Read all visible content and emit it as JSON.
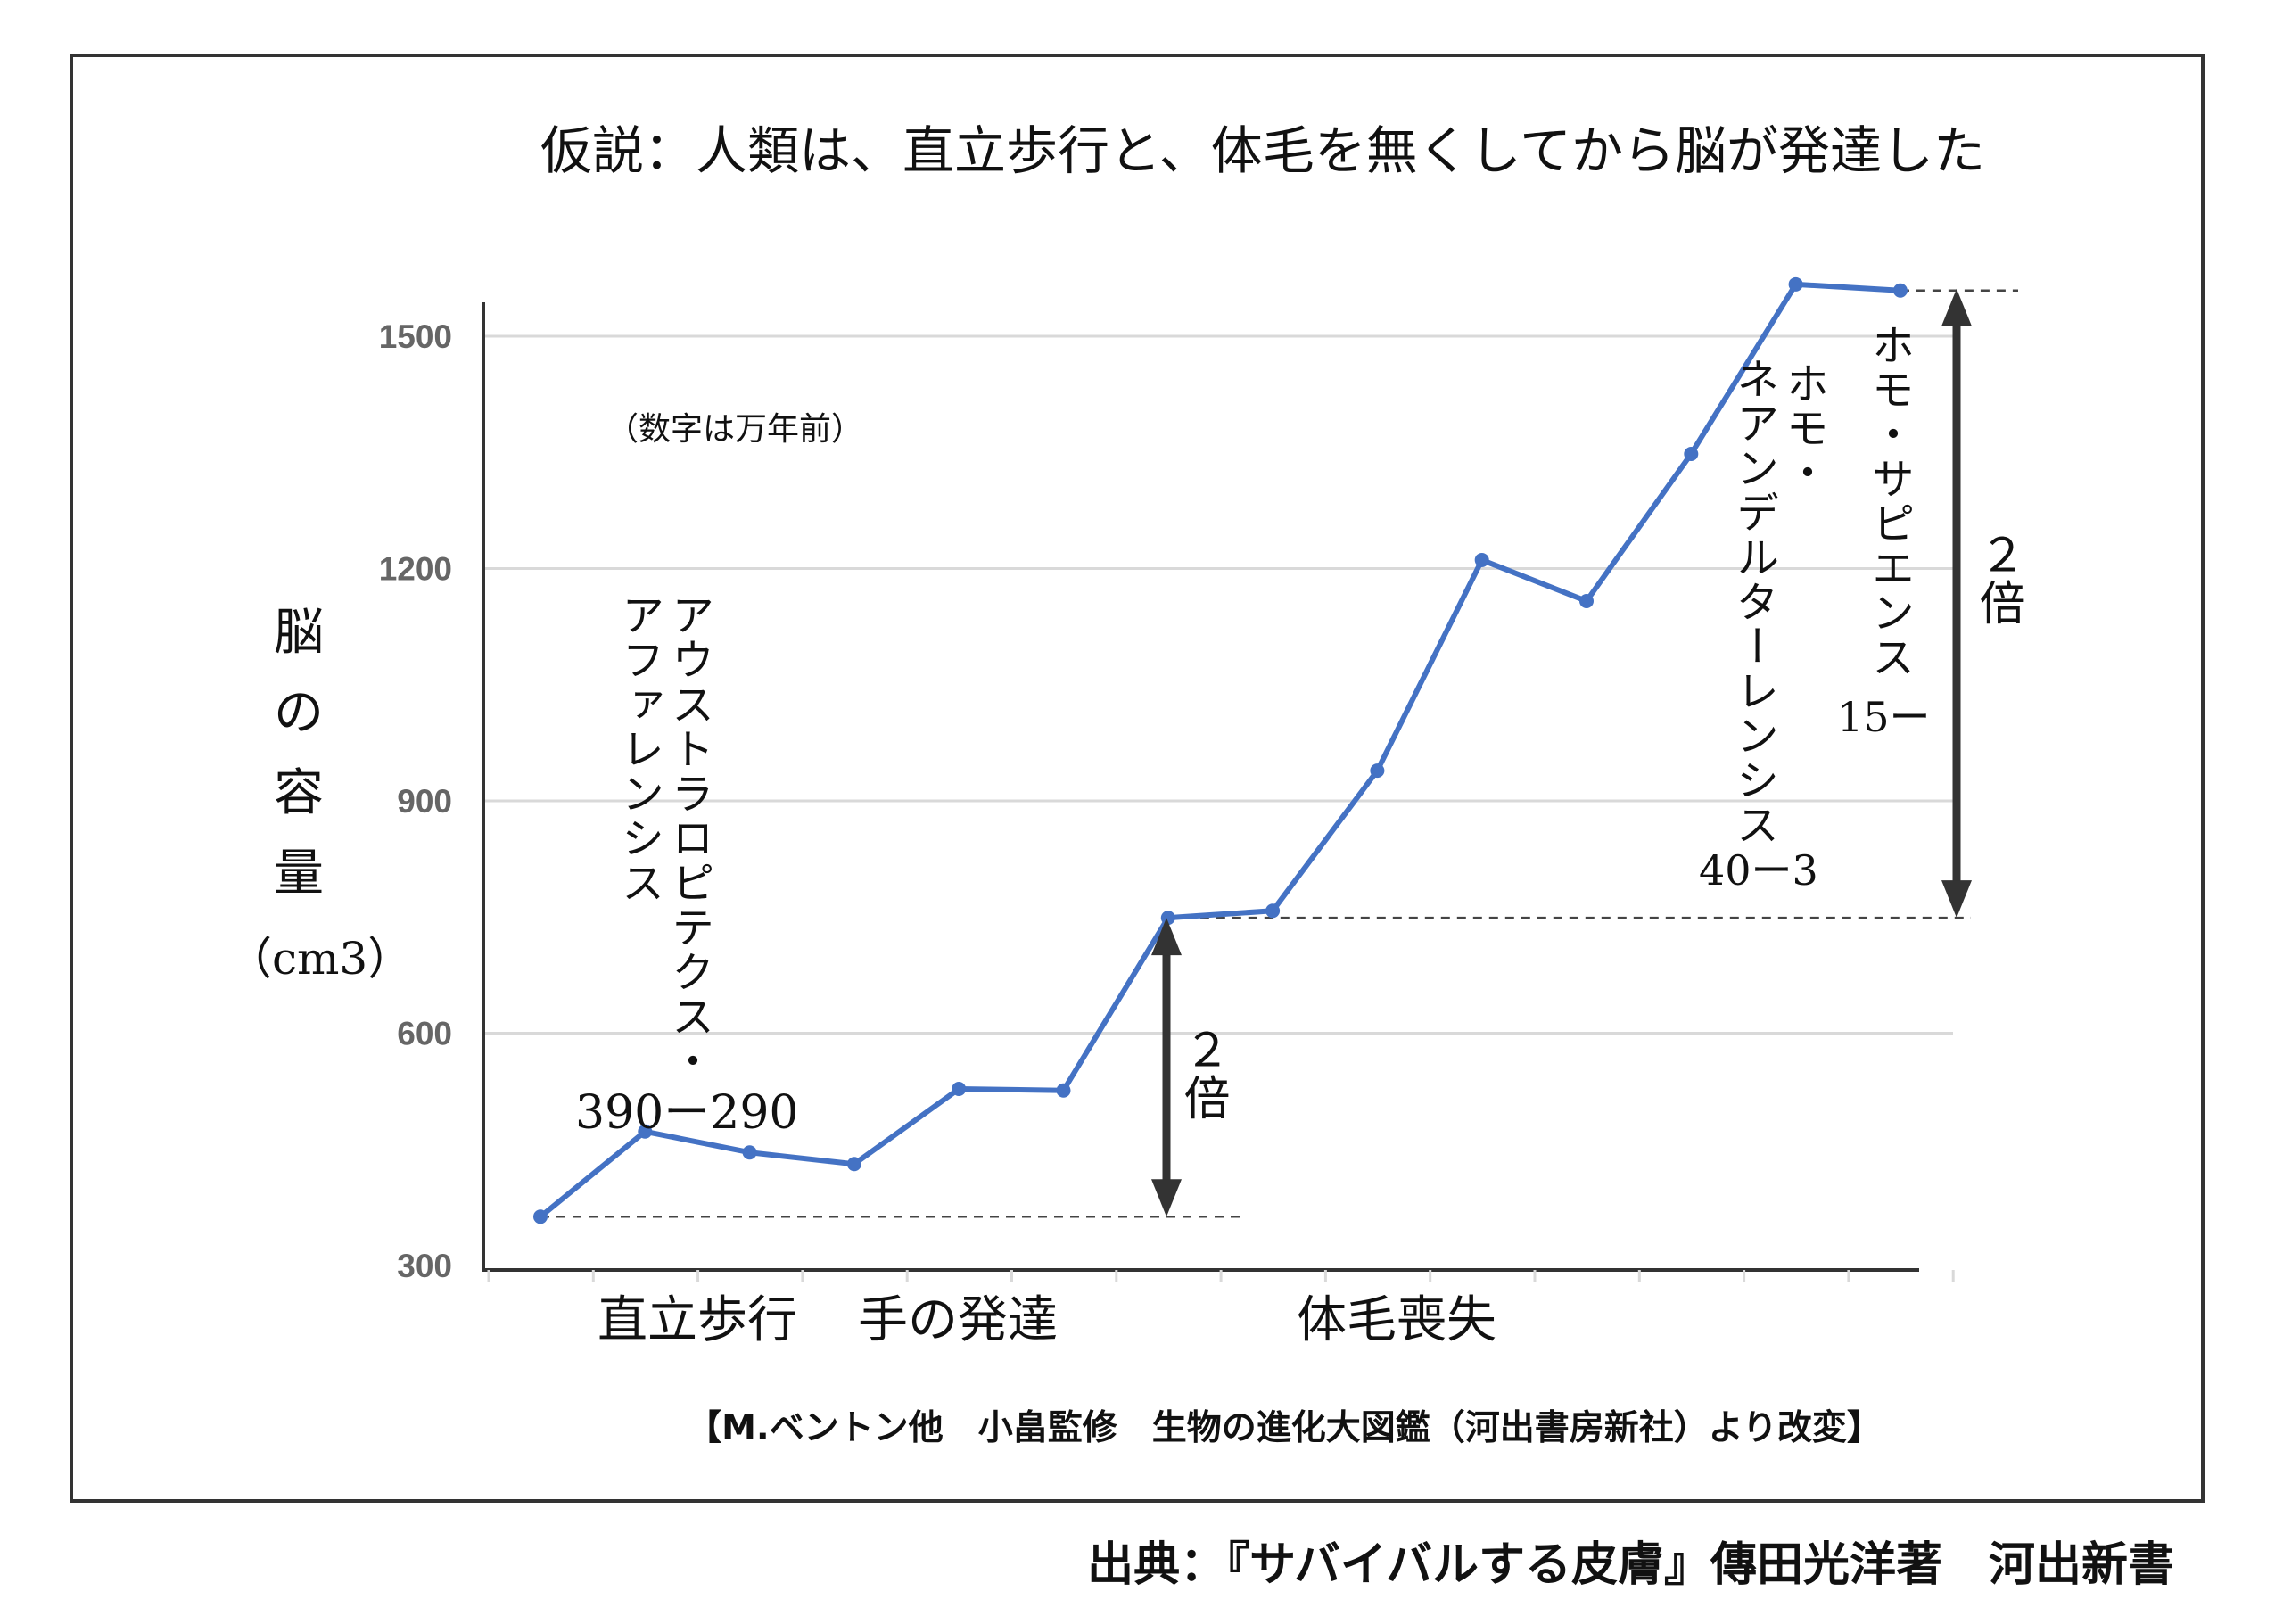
{
  "chart_data": {
    "type": "line",
    "title": "仮説：人類は、直立歩行と、体毛を無くしてから脳が発達した",
    "ylabel_chars": [
      "脳",
      "の",
      "容",
      "量"
    ],
    "ylabel_unit": "（cm3）",
    "xlabel": "",
    "ylim": [
      300,
      1550
    ],
    "yticks": [
      "300",
      "600",
      "900",
      "1200",
      "1500"
    ],
    "ytick_values": [
      300,
      600,
      900,
      1200,
      1500
    ],
    "grid": true,
    "x_stage_labels": [
      "直立歩行",
      "手の発達",
      "体毛喪失"
    ],
    "series": [
      {
        "name": "brain capacity",
        "color": "#4472C4",
        "values": [
          363,
          473,
          446,
          431,
          528,
          526,
          749,
          758,
          939,
          1211,
          1158,
          1348,
          1567,
          1559
        ]
      }
    ],
    "note": "（数字は万年前）",
    "annotations": {
      "afarensis_line1": "アウストラロピテクス・",
      "afarensis_line2": "アファレンシス",
      "afarensis_years": "390ー290",
      "neanderthal_line1": "ホモ・",
      "neanderthal_line2": "ネアンデルターレンシス",
      "neanderthal_years": "40ー3",
      "sapiens_line1": "ホモ・サピエンス",
      "sapiens_years": "15ー",
      "double_label_1": "２倍",
      "double_label_2": "２倍"
    },
    "source": "【M.ベントン他　小畠監修　生物の進化大図鑑（河出書房新社）より改変】"
  },
  "footer": "出典：『サバイバルする皮膚』傳田光洋著　河出新書",
  "colors": {
    "line": "#4472C4",
    "arrow": "#333333",
    "grid": "#d9d9d9",
    "tick": "#666666"
  }
}
